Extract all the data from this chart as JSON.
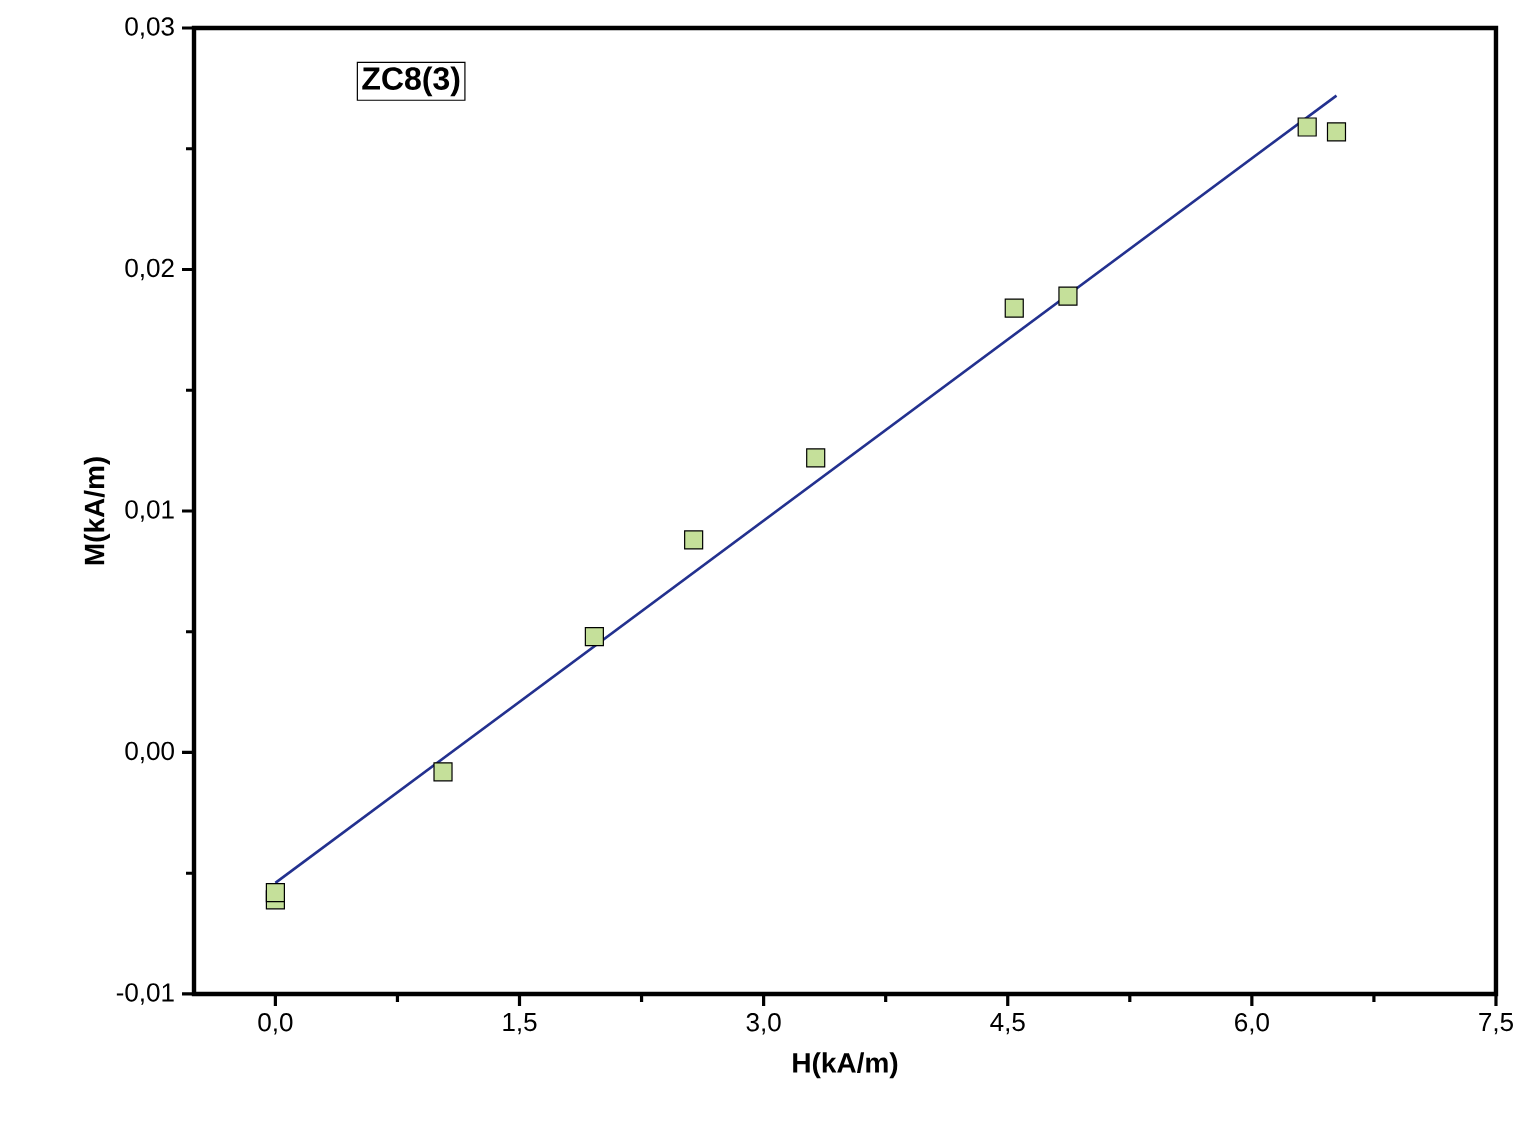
{
  "chart_data": {
    "type": "scatter",
    "xlabel": "H(kA/m)",
    "ylabel": "M(kA/m)",
    "annotations": [
      "ZC8(3)"
    ],
    "xlim": [
      -0.5,
      7.5
    ],
    "ylim": [
      -0.01,
      0.03
    ],
    "xticks": [
      {
        "value": 0,
        "label": "0,0"
      },
      {
        "value": 1.5,
        "label": "1,5"
      },
      {
        "value": 3,
        "label": "3,0"
      },
      {
        "value": 4.5,
        "label": "4,5"
      },
      {
        "value": 6,
        "label": "6,0"
      },
      {
        "value": 7.5,
        "label": "7,5"
      }
    ],
    "yticks": [
      {
        "value": -0.01,
        "label": "-0,01"
      },
      {
        "value": 0,
        "label": "0,00"
      },
      {
        "value": 0.01,
        "label": "0,01"
      },
      {
        "value": 0.02,
        "label": "0,02"
      },
      {
        "value": 0.03,
        "label": "0,03"
      }
    ],
    "series": [
      {
        "marker": "square",
        "color": "#c5e09a",
        "x": [
          0,
          0,
          1.03,
          1.96,
          2.57,
          3.32,
          4.54,
          4.87,
          6.34,
          6.52
        ],
        "values": [
          -0.0061,
          -0.0058,
          -0.0008,
          0.0048,
          0.0088,
          0.0122,
          0.0184,
          0.0189,
          0.0259,
          0.0257
        ]
      },
      {
        "type": "line",
        "marker": "none",
        "line_style": "solid",
        "color": "#23318f",
        "x": [
          0,
          6.52
        ],
        "values": [
          -0.0054,
          0.0272
        ]
      }
    ]
  }
}
